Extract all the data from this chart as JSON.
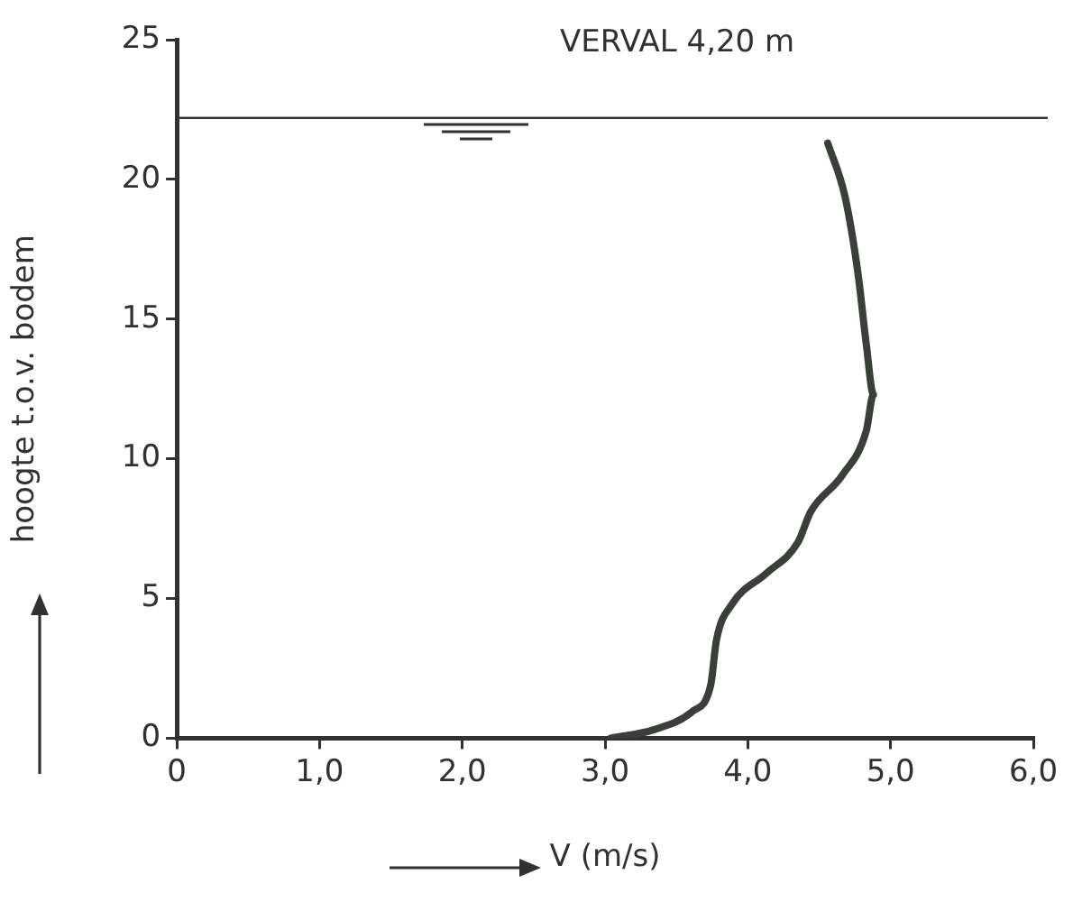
{
  "chart_data": {
    "type": "line",
    "xlabel": "V (m/s)",
    "ylabel": "hoogte t.o.v. bodem",
    "annotations": [
      "VERVAL 4,20 m"
    ],
    "series": [
      {
        "color": "#3a3f3a",
        "x": [
          3.04,
          3.34,
          3.61,
          3.74,
          3.78,
          3.89,
          4.13,
          4.35,
          4.44,
          4.66,
          4.83,
          4.88,
          4.83,
          4.77,
          4.68,
          4.56
        ],
        "values": [
          0,
          0.3,
          0.95,
          1.9,
          3.5,
          4.8,
          5.9,
          7.0,
          8.1,
          9.4,
          11.0,
          12.3,
          14.1,
          16.7,
          19.4,
          21.3
        ]
      }
    ],
    "xlim": [
      0,
      6
    ],
    "xticks": [
      0,
      {
        "value": 1,
        "label": "1,0"
      },
      {
        "value": 2,
        "label": "2,0"
      },
      {
        "value": 3,
        "label": "3,0"
      },
      {
        "value": 4,
        "label": "4,0"
      },
      {
        "value": 5,
        "label": "5,0"
      },
      {
        "value": 6,
        "label": "6,0"
      }
    ],
    "ylim": [
      0,
      25
    ],
    "yticks": [
      0,
      5,
      10,
      15,
      20,
      25
    ],
    "ref_lines": [
      {
        "axis": "y",
        "value": 22.2,
        "color": "#333333"
      }
    ],
    "grid": false,
    "legend": false,
    "marker": "none",
    "line_style": "solid"
  }
}
